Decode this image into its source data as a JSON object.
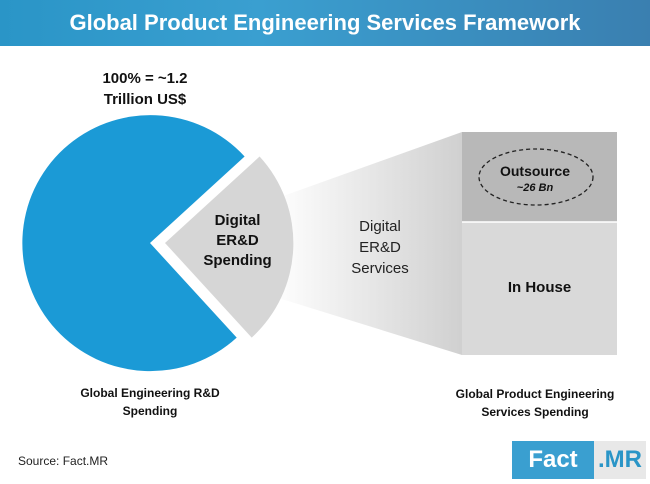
{
  "title": "Global Product Engineering Services Framework",
  "total": {
    "line1": "100% = ~1.2",
    "line2": "Trillion US$"
  },
  "wedge": {
    "line1": "Digital",
    "line2": "ER&D",
    "line3": "Spending"
  },
  "flow": {
    "line1": "Digital",
    "line2": "ER&D",
    "line3": "Services"
  },
  "outsource": {
    "label": "Outsource",
    "value": "~26 Bn"
  },
  "inhouse": {
    "label": "In House"
  },
  "captions": {
    "left_line1": "Global Engineering R&D",
    "left_line2": "Spending",
    "right_line1": "Global Product Engineering",
    "right_line2": "Services Spending"
  },
  "source": "Source: Fact.MR",
  "logo": {
    "part1": "Fact",
    "part2": ".MR"
  },
  "colors": {
    "brand": "#3a9fd0",
    "wedge": "#d6d6d6",
    "box_top": "#b8b8b8",
    "box_bottom": "#d9d9d9"
  }
}
